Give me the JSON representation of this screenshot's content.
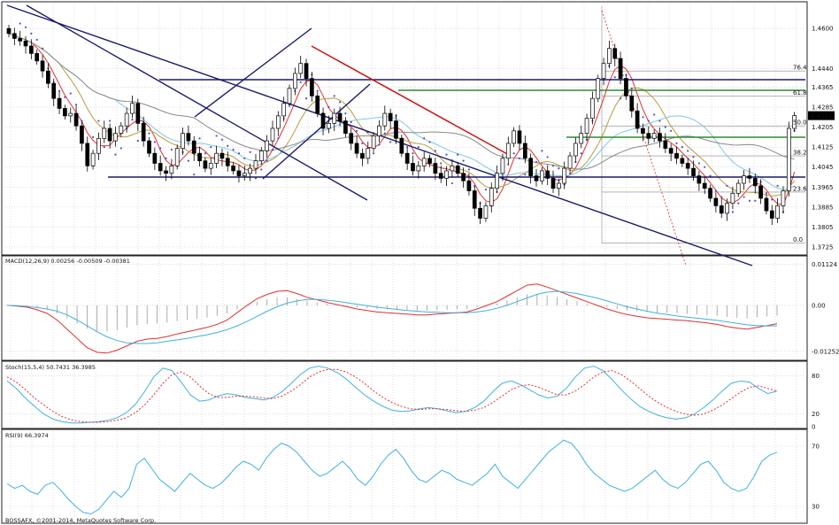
{
  "chart_data": [
    {
      "type": "candlestick",
      "name": "price",
      "ylim": [
        1.37,
        1.47
      ],
      "y_ticks": [
        "1.4600",
        "1.4440",
        "1.4365",
        "1.4285",
        "1.4205",
        "1.4125",
        "1.4045",
        "1.3965",
        "1.3885",
        "1.3805",
        "1.3725"
      ],
      "current_price": "1.4251",
      "fib_labels": [
        "76.4",
        "61.8",
        "50.0",
        "38.2",
        "23.6",
        "0.0"
      ],
      "closes": [
        1.458,
        1.456,
        1.455,
        1.453,
        1.45,
        1.447,
        1.443,
        1.438,
        1.432,
        1.428,
        1.425,
        1.426,
        1.421,
        1.414,
        1.405,
        1.41,
        1.416,
        1.42,
        1.415,
        1.418,
        1.421,
        1.426,
        1.43,
        1.422,
        1.415,
        1.41,
        1.406,
        1.403,
        1.402,
        1.405,
        1.412,
        1.418,
        1.415,
        1.41,
        1.407,
        1.404,
        1.406,
        1.41,
        1.408,
        1.405,
        1.403,
        1.401,
        1.402,
        1.404,
        1.407,
        1.411,
        1.415,
        1.42,
        1.425,
        1.43,
        1.436,
        1.442,
        1.446,
        1.44,
        1.433,
        1.426,
        1.42,
        1.422,
        1.426,
        1.423,
        1.418,
        1.414,
        1.41,
        1.408,
        1.412,
        1.417,
        1.421,
        1.426,
        1.423,
        1.416,
        1.41,
        1.406,
        1.403,
        1.405,
        1.408,
        1.406,
        1.402,
        1.4,
        1.403,
        1.405,
        1.402,
        1.399,
        1.395,
        1.388,
        1.384,
        1.389,
        1.396,
        1.402,
        1.408,
        1.414,
        1.419,
        1.414,
        1.408,
        1.401,
        1.399,
        1.403,
        1.4,
        1.396,
        1.398,
        1.404,
        1.409,
        1.414,
        1.418,
        1.424,
        1.432,
        1.44,
        1.446,
        1.452,
        1.448,
        1.44,
        1.433,
        1.427,
        1.42,
        1.418,
        1.416,
        1.418,
        1.415,
        1.412,
        1.41,
        1.408,
        1.406,
        1.404,
        1.401,
        1.398,
        1.396,
        1.392,
        1.389,
        1.386,
        1.39,
        1.394,
        1.398,
        1.401,
        1.4,
        1.397,
        1.392,
        1.387,
        1.384,
        1.389,
        1.395,
        1.42,
        1.4251
      ]
    },
    {
      "type": "line",
      "name": "macd",
      "label": "MACD(12,26,9) 0.00256 -0.00509 -0.00381",
      "ylim": [
        -0.0145,
        0.013
      ],
      "y_ticks": [
        "0.01124",
        "0.00",
        "-0.01252"
      ],
      "series": [
        {
          "color": "#e03030",
          "values": [
            0.0,
            -0.0002,
            -0.0005,
            -0.0012,
            -0.0022,
            -0.004,
            -0.0065,
            -0.009,
            -0.0115,
            -0.0128,
            -0.013,
            -0.0122,
            -0.011,
            -0.0098,
            -0.0092,
            -0.009,
            -0.0085,
            -0.0078,
            -0.0072,
            -0.0066,
            -0.006,
            -0.0052,
            -0.004,
            -0.002,
            0.0,
            0.0018,
            0.003,
            0.0038,
            0.004,
            0.0032,
            0.0022,
            0.0015,
            0.0008,
            0.0002,
            -0.0004,
            -0.001,
            -0.0014,
            -0.0018,
            -0.002,
            -0.0022,
            -0.0024,
            -0.0026,
            -0.0026,
            -0.0024,
            -0.0022,
            -0.002,
            -0.0018,
            -0.001,
            0.0,
            0.001,
            0.0025,
            0.004,
            0.0055,
            0.0058,
            0.005,
            0.004,
            0.003,
            0.002,
            0.001,
            0.0,
            -0.001,
            -0.0018,
            -0.0025,
            -0.003,
            -0.0034,
            -0.0036,
            -0.0038,
            -0.004,
            -0.0042,
            -0.0045,
            -0.0048,
            -0.0052,
            -0.0058,
            -0.0062,
            -0.0065,
            -0.006,
            -0.0055,
            -0.005
          ]
        },
        {
          "color": "#40b0e0",
          "values": [
            0.0,
            -0.0001,
            -0.0003,
            -0.0006,
            -0.001,
            -0.0016,
            -0.0026,
            -0.004,
            -0.0056,
            -0.0072,
            -0.0086,
            -0.0096,
            -0.0102,
            -0.0104,
            -0.0104,
            -0.0102,
            -0.0098,
            -0.0094,
            -0.009,
            -0.0085,
            -0.008,
            -0.0074,
            -0.0066,
            -0.0056,
            -0.0044,
            -0.003,
            -0.0016,
            -0.0004,
            0.0006,
            0.0012,
            0.0016,
            0.0016,
            0.0014,
            0.0011,
            0.0007,
            0.0003,
            -0.0001,
            -0.0005,
            -0.0008,
            -0.0011,
            -0.0014,
            -0.0016,
            -0.0018,
            -0.0019,
            -0.002,
            -0.002,
            -0.002,
            -0.0018,
            -0.0014,
            -0.0008,
            0.0,
            0.001,
            0.002,
            0.003,
            0.0036,
            0.0038,
            0.0036,
            0.0032,
            0.0026,
            0.002,
            0.0012,
            0.0004,
            -0.0004,
            -0.001,
            -0.0016,
            -0.0021,
            -0.0025,
            -0.0029,
            -0.0032,
            -0.0035,
            -0.0038,
            -0.0041,
            -0.0045,
            -0.0049,
            -0.0053,
            -0.0055,
            -0.0056,
            -0.0056
          ]
        }
      ]
    },
    {
      "type": "line",
      "name": "stoch",
      "label": "Stoch(15,5,4) 50.7431 36.3985",
      "ylim": [
        0,
        100
      ],
      "y_ticks": [
        "80",
        "20",
        "0"
      ],
      "series": [
        {
          "color": "#40b0e0",
          "values": [
            72,
            60,
            45,
            32,
            20,
            12,
            8,
            6,
            6,
            7,
            8,
            10,
            14,
            22,
            35,
            55,
            78,
            92,
            88,
            70,
            50,
            40,
            42,
            48,
            52,
            50,
            46,
            44,
            42,
            46,
            55,
            68,
            82,
            92,
            95,
            92,
            85,
            75,
            62,
            50,
            40,
            32,
            26,
            24,
            25,
            28,
            30,
            28,
            25,
            22,
            24,
            30,
            40,
            55,
            68,
            72,
            66,
            58,
            50,
            45,
            48,
            60,
            78,
            92,
            95,
            88,
            74,
            58,
            44,
            32,
            24,
            18,
            14,
            12,
            14,
            20,
            30,
            42,
            56,
            68,
            72,
            70,
            60,
            52,
            56
          ]
        },
        {
          "color": "#e03030",
          "dashed": true,
          "values": [
            78,
            70,
            58,
            45,
            34,
            24,
            16,
            11,
            8,
            7,
            7,
            8,
            10,
            14,
            22,
            34,
            50,
            68,
            82,
            86,
            78,
            64,
            52,
            46,
            46,
            48,
            48,
            47,
            45,
            44,
            48,
            56,
            66,
            78,
            86,
            90,
            90,
            86,
            78,
            68,
            56,
            46,
            38,
            32,
            28,
            27,
            28,
            28,
            27,
            25,
            24,
            26,
            30,
            38,
            48,
            58,
            64,
            66,
            62,
            56,
            50,
            50,
            56,
            66,
            78,
            86,
            88,
            82,
            72,
            60,
            48,
            38,
            30,
            24,
            20,
            18,
            20,
            26,
            34,
            44,
            54,
            62,
            64,
            60,
            56
          ]
        }
      ]
    },
    {
      "type": "line",
      "name": "rsi",
      "label": "RSI(9) 66.3974",
      "ylim": [
        20,
        80
      ],
      "y_ticks": [
        "70",
        "30"
      ],
      "series": [
        {
          "color": "#40b0e0",
          "values": [
            45,
            42,
            44,
            40,
            38,
            44,
            46,
            41,
            35,
            30,
            26,
            25,
            28,
            34,
            40,
            36,
            42,
            58,
            62,
            55,
            48,
            44,
            40,
            46,
            52,
            48,
            44,
            42,
            45,
            50,
            56,
            60,
            58,
            54,
            62,
            68,
            72,
            70,
            66,
            60,
            54,
            50,
            52,
            56,
            60,
            55,
            48,
            44,
            50,
            58,
            64,
            68,
            62,
            54,
            48,
            46,
            50,
            54,
            52,
            48,
            46,
            44,
            48,
            52,
            58,
            50,
            46,
            42,
            48,
            54,
            60,
            66,
            70,
            74,
            72,
            66,
            58,
            52,
            48,
            44,
            42,
            40,
            42,
            46,
            50,
            54,
            48,
            44,
            42,
            46,
            52,
            58,
            60,
            54,
            46,
            42,
            40,
            42,
            50,
            60,
            64,
            66
          ]
        }
      ]
    }
  ],
  "footer": "BOSSAFX, ©2001-2014, MetaQuotes Software Corp."
}
